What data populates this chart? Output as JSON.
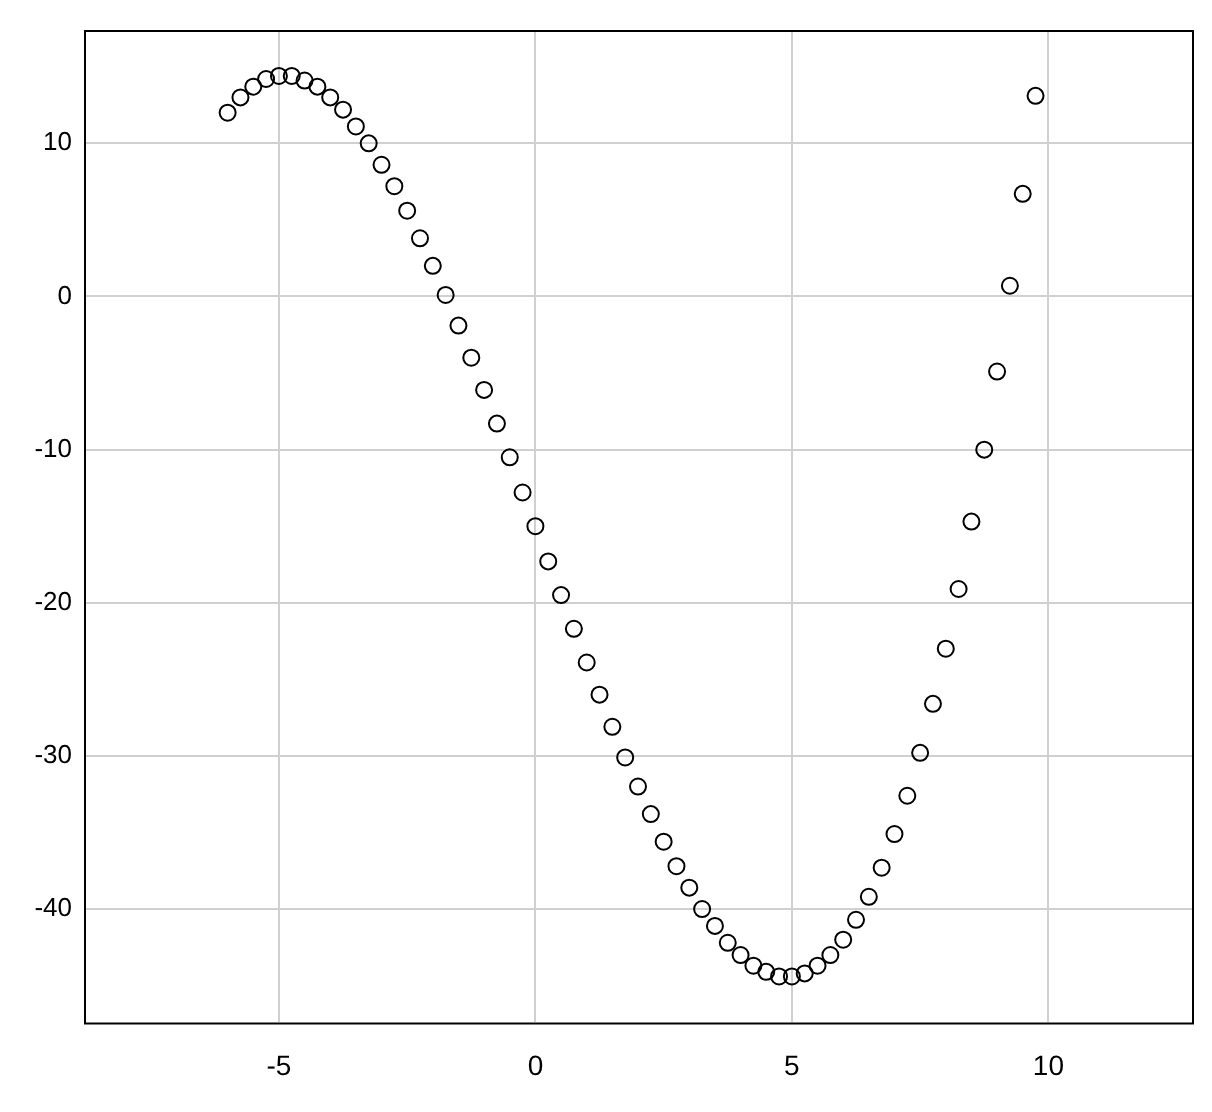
{
  "chart_data": {
    "type": "scatter",
    "x": [
      -6,
      -5.75,
      -5.5,
      -5.25,
      -5,
      -4.75,
      -4.5,
      -4.25,
      -4,
      -3.75,
      -3.5,
      -3.25,
      -3,
      -2.75,
      -2.5,
      -2.25,
      -2,
      -1.75,
      -1.5,
      -1.25,
      -1,
      -0.75,
      -0.5,
      -0.25,
      0,
      0.25,
      0.5,
      0.75,
      1,
      1.25,
      1.5,
      1.75,
      2,
      2.25,
      2.5,
      2.75,
      3,
      3.25,
      3.5,
      3.75,
      4,
      4.25,
      4.5,
      4.75,
      5,
      5.25,
      5.5,
      5.75,
      6,
      6.25,
      6.5,
      6.75,
      7,
      7.25,
      7.5,
      7.75,
      8,
      8.25,
      8.5,
      8.75,
      9,
      9.25,
      9.5,
      9.75
    ],
    "series": [
      {
        "color": "#000000",
        "values": [
          12,
          13,
          13.7,
          14.2,
          14.4,
          14.4,
          14.1,
          13.7,
          13,
          12.2,
          11.1,
          10,
          8.6,
          7.2,
          5.6,
          3.8,
          2,
          0.1,
          -1.9,
          -4,
          -6.1,
          -8.3,
          -10.5,
          -12.8,
          -15,
          -17.3,
          -19.5,
          -21.7,
          -23.9,
          -26,
          -28.1,
          -30.1,
          -32,
          -33.8,
          -35.6,
          -37.2,
          -38.6,
          -40,
          -41.1,
          -42.2,
          -43,
          -43.7,
          -44.1,
          -44.4,
          -44.4,
          -44.2,
          -43.7,
          -43,
          -42,
          -40.7,
          -39.2,
          -37.3,
          -35.1,
          -32.6,
          -29.8,
          -26.6,
          -23,
          -19.1,
          -14.7,
          -10,
          -4.9,
          0.7,
          6.7,
          13.1
        ]
      }
    ],
    "xlim": [
      -8.8,
      12.8
    ],
    "xticks": [
      -5,
      0,
      5,
      10
    ],
    "ylim": [
      -47.4,
      17.4
    ],
    "yticks": [
      -40,
      -30,
      -20,
      -10,
      0,
      10
    ],
    "grid": true,
    "legend": false,
    "marker": "circle"
  }
}
